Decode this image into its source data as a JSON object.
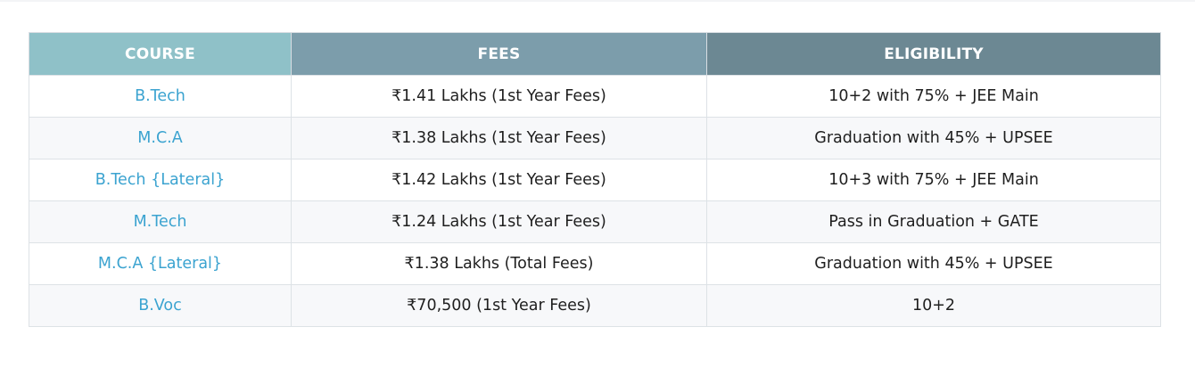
{
  "colors": {
    "header_course_bg": "#8fc1c8",
    "header_fees_bg": "#7c9dab",
    "header_eligibility_bg": "#6c8893",
    "course_text": "#3ba3d0",
    "body_text": "#1f1f1f"
  },
  "table": {
    "headers": {
      "course": "COURSE",
      "fees": "FEES",
      "eligibility": "ELIGIBILITY"
    },
    "rows": [
      {
        "course": "B.Tech",
        "fees": "₹1.41 Lakhs (1st Year Fees)",
        "eligibility": "10+2 with 75% + JEE Main"
      },
      {
        "course": "M.C.A",
        "fees": "₹1.38 Lakhs (1st Year Fees)",
        "eligibility": "Graduation with 45% + UPSEE"
      },
      {
        "course": "B.Tech {Lateral}",
        "fees": "₹1.42 Lakhs (1st Year Fees)",
        "eligibility": "10+3 with 75% + JEE Main"
      },
      {
        "course": "M.Tech",
        "fees": "₹1.24 Lakhs (1st Year Fees)",
        "eligibility": "Pass in Graduation + GATE"
      },
      {
        "course": "M.C.A {Lateral}",
        "fees": "₹1.38 Lakhs (Total Fees)",
        "eligibility": "Graduation with 45% + UPSEE"
      },
      {
        "course": "B.Voc",
        "fees": "₹70,500 (1st Year Fees)",
        "eligibility": "10+2"
      }
    ]
  }
}
